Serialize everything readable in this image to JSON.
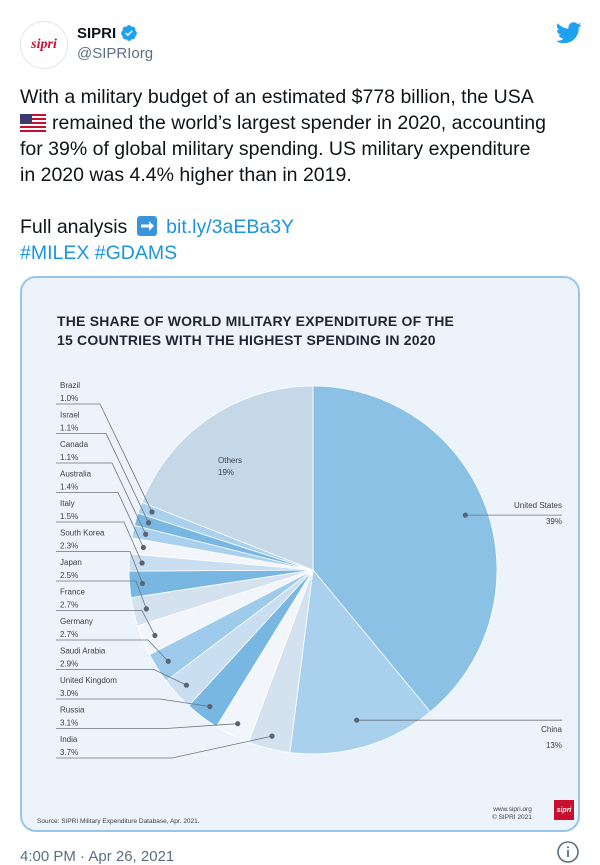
{
  "user": {
    "display_name": "SIPRI",
    "handle": "@SIPRIorg",
    "avatar_text": "sipri"
  },
  "tweet": {
    "line1": "With a military budget of an estimated $778 billion, the USA",
    "line2": "remained the world’s largest spender in 2020, accounting",
    "line3": "for 39% of global military spending. US military expenditure",
    "line4": "in 2020 was 4.4% higher than in 2019.",
    "full_analysis": "Full analysis",
    "link": "bit.ly/3aEBa3Y",
    "hashtag1": "#MILEX",
    "hashtag2": "#GDAMS",
    "timestamp": "4:00 PM · Apr 26, 2021"
  },
  "icons": {
    "verified": "verified-badge-icon",
    "twitter": "twitter-bird-icon",
    "flag": "us-flag-emoji",
    "arrow": "right-arrow-emoji",
    "info": "info-icon"
  },
  "colors": {
    "twitter_blue": "#1da1f2",
    "link_blue": "#1b95e0",
    "sipri_red": "#c8102e",
    "card_border": "#98c6ea"
  },
  "chart_data": {
    "type": "pie",
    "title": "THE SHARE OF WORLD MILITARY EXPENDITURE OF THE 15 COUNTRIES WITH THE HIGHEST SPENDING IN 2020",
    "title_line1": "THE SHARE OF WORLD MILITARY EXPENDITURE OF THE",
    "title_line2": "15 COUNTRIES WITH THE HIGHEST SPENDING IN 2020",
    "slices": [
      {
        "label": "United States",
        "value": 39,
        "display": "39%",
        "color": "#8cc1e6"
      },
      {
        "label": "China",
        "value": 13,
        "display": "13%",
        "color": "#a9d1ee"
      },
      {
        "label": "India",
        "value": 3.7,
        "display": "3.7%",
        "color": "#d3e2ee"
      },
      {
        "label": "Russia",
        "value": 3.1,
        "display": "3.1%",
        "color": "#f2f6fa"
      },
      {
        "label": "United Kingdom",
        "value": 3.0,
        "display": "3.0%",
        "color": "#78b7e2"
      },
      {
        "label": "Saudi Arabia",
        "value": 2.9,
        "display": "2.9%",
        "color": "#c9def0"
      },
      {
        "label": "Germany",
        "value": 2.7,
        "display": "2.7%",
        "color": "#9ecbeb"
      },
      {
        "label": "France",
        "value": 2.7,
        "display": "2.7%",
        "color": "#f2f6fa"
      },
      {
        "label": "Japan",
        "value": 2.5,
        "display": "2.5%",
        "color": "#d3e2ee"
      },
      {
        "label": "South Korea",
        "value": 2.3,
        "display": "2.3%",
        "color": "#78b7e2"
      },
      {
        "label": "Italy",
        "value": 1.5,
        "display": "1.5%",
        "color": "#c9def0"
      },
      {
        "label": "Australia",
        "value": 1.4,
        "display": "1.4%",
        "color": "#f2f6fa"
      },
      {
        "label": "Canada",
        "value": 1.1,
        "display": "1.1%",
        "color": "#a9d1ee"
      },
      {
        "label": "Israel",
        "value": 1.1,
        "display": "1.1%",
        "color": "#78b7e2"
      },
      {
        "label": "Brazil",
        "value": 1.0,
        "display": "1.0%",
        "color": "#a9d1ee"
      },
      {
        "label": "Others",
        "value": 19,
        "display": "19%",
        "color": "#c4d8e8"
      }
    ],
    "source": "Source: SIPRI Military Expenditure Database, Apr. 2021.",
    "credit_line1": "www.sipri.org",
    "credit_line2": "© SIPRI 2021",
    "badge": "sipri"
  }
}
